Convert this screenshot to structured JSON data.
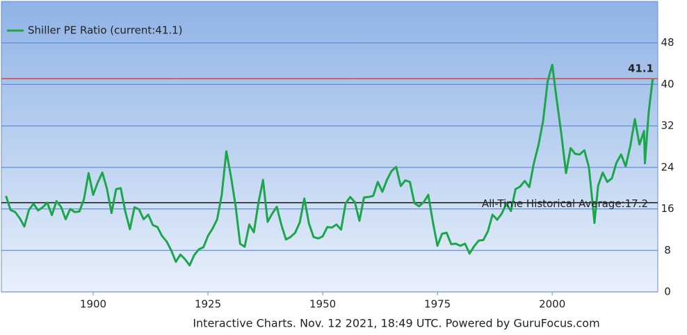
{
  "chart_data": {
    "type": "line",
    "legend": "top-left",
    "grid": true,
    "xlim": [
      1880,
      2023
    ],
    "xticks": [
      1900,
      1925,
      1950,
      1975,
      2000
    ],
    "ylim": [
      0,
      56
    ],
    "yticks": [
      0,
      8,
      16,
      24,
      32,
      40,
      48
    ],
    "x": [
      1881,
      1882,
      1883,
      1884,
      1885,
      1886,
      1887,
      1888,
      1889,
      1890,
      1891,
      1892,
      1893,
      1894,
      1895,
      1896,
      1897,
      1898,
      1899,
      1900,
      1901,
      1902,
      1903,
      1904,
      1905,
      1906,
      1907,
      1908,
      1909,
      1910,
      1911,
      1912,
      1913,
      1914,
      1915,
      1916,
      1917,
      1918,
      1919,
      1920,
      1921,
      1922,
      1923,
      1924,
      1925,
      1926,
      1927,
      1928,
      1929,
      1930,
      1931,
      1932,
      1933,
      1934,
      1935,
      1936,
      1937,
      1938,
      1939,
      1940,
      1941,
      1942,
      1943,
      1944,
      1945,
      1946,
      1947,
      1948,
      1949,
      1950,
      1951,
      1952,
      1953,
      1954,
      1955,
      1956,
      1957,
      1958,
      1959,
      1960,
      1961,
      1962,
      1963,
      1964,
      1965,
      1966,
      1967,
      1968,
      1969,
      1970,
      1971,
      1972,
      1973,
      1974,
      1975,
      1976,
      1977,
      1978,
      1979,
      1980,
      1981,
      1982,
      1983,
      1984,
      1985,
      1986,
      1987,
      1988,
      1989,
      1990,
      1991,
      1992,
      1993,
      1994,
      1995,
      1996,
      1997,
      1998,
      1999,
      2000,
      2001,
      2002,
      2003,
      2004,
      2005,
      2006,
      2007,
      2008,
      2009,
      2009.2,
      2010,
      2011,
      2012,
      2013,
      2014,
      2015,
      2016,
      2017,
      2018,
      2019,
      2020,
      2020.2,
      2021,
      2021.9
    ],
    "series": [
      {
        "name": "Shiller PE Ratio (current:41.1)",
        "color": "#1ba64a",
        "values": [
          18.5,
          15.8,
          15.4,
          14.2,
          12.6,
          15.8,
          17.0,
          15.7,
          16.3,
          17.2,
          14.8,
          17.5,
          16.4,
          14.0,
          16.0,
          15.4,
          15.5,
          17.9,
          22.9,
          18.7,
          21.1,
          23.0,
          19.9,
          15.2,
          19.8,
          20.0,
          15.5,
          12.1,
          16.3,
          15.9,
          14.0,
          14.9,
          12.9,
          12.5,
          10.8,
          9.7,
          8.0,
          5.8,
          7.2,
          6.3,
          5.1,
          7.1,
          8.2,
          8.6,
          10.8,
          12.2,
          14.0,
          18.7,
          27.1,
          22.3,
          16.7,
          9.3,
          8.7,
          13.0,
          11.5,
          17.2,
          21.6,
          13.5,
          15.1,
          16.4,
          12.9,
          10.1,
          10.6,
          11.4,
          13.4,
          18.0,
          13.2,
          10.6,
          10.3,
          10.7,
          12.5,
          12.4,
          13.0,
          12.0,
          17.1,
          18.3,
          17.3,
          13.7,
          18.2,
          18.3,
          18.5,
          21.2,
          19.3,
          21.6,
          23.3,
          24.1,
          20.4,
          21.5,
          21.2,
          17.1,
          16.5,
          17.3,
          18.7,
          13.5,
          8.9,
          11.2,
          11.4,
          9.2,
          9.3,
          8.9,
          9.3,
          7.4,
          8.8,
          9.9,
          10.0,
          11.7,
          14.9,
          13.9,
          15.1,
          17.0,
          15.6,
          19.8,
          20.3,
          21.4,
          20.2,
          24.8,
          28.3,
          32.9,
          40.6,
          43.8,
          36.9,
          30.3,
          22.9,
          27.7,
          26.6,
          26.5,
          27.3,
          24.0,
          15.2,
          13.3,
          20.5,
          23.0,
          21.2,
          21.9,
          24.9,
          26.5,
          24.2,
          28.1,
          33.3,
          28.4,
          31.0,
          24.8,
          34.5,
          41.1
        ]
      }
    ],
    "reference_lines": [
      {
        "value": 41.1,
        "label": "41.1",
        "color": "#d9443c"
      },
      {
        "value": 17.2,
        "label": "All-Time Historical Average:17.2",
        "color": "#111111"
      }
    ],
    "footer": "Interactive Charts. Nov. 12 2021, 18:49 UTC. Powered by GuruFocus.com"
  }
}
